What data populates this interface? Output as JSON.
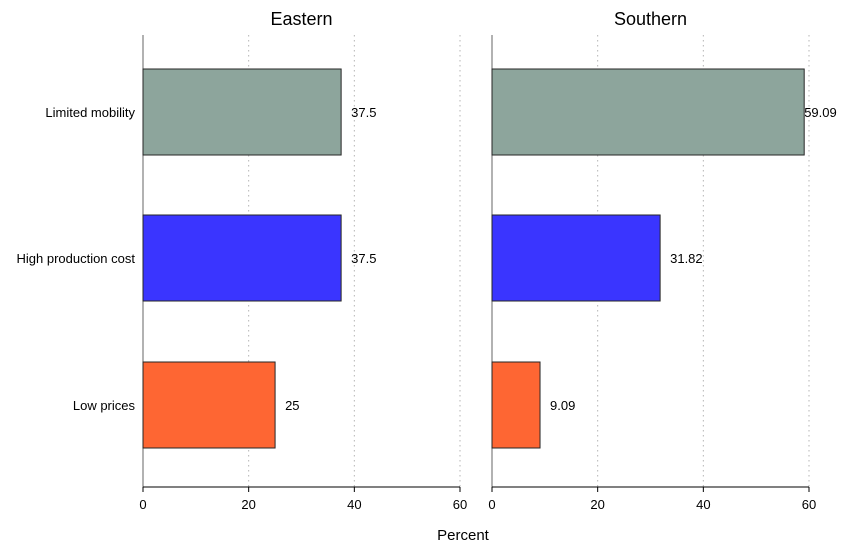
{
  "chart_data": {
    "type": "bar",
    "orientation": "horizontal",
    "categories": [
      "Limited mobility",
      "High production cost",
      "Low prices"
    ],
    "category_colors": [
      "#8da59c",
      "#3a35ff",
      "#fe6633"
    ],
    "xlabel": "Percent",
    "xlim": [
      0,
      60
    ],
    "xticks": [
      0,
      20,
      40,
      60
    ],
    "grid": true,
    "panels": [
      {
        "title": "Eastern",
        "values": [
          37.5,
          37.5,
          25
        ],
        "value_labels": [
          "37.5",
          "37.5",
          "25"
        ]
      },
      {
        "title": "Southern",
        "values": [
          59.09,
          31.82,
          9.09
        ],
        "value_labels": [
          "59.09",
          "31.82",
          "9.09"
        ]
      }
    ]
  }
}
